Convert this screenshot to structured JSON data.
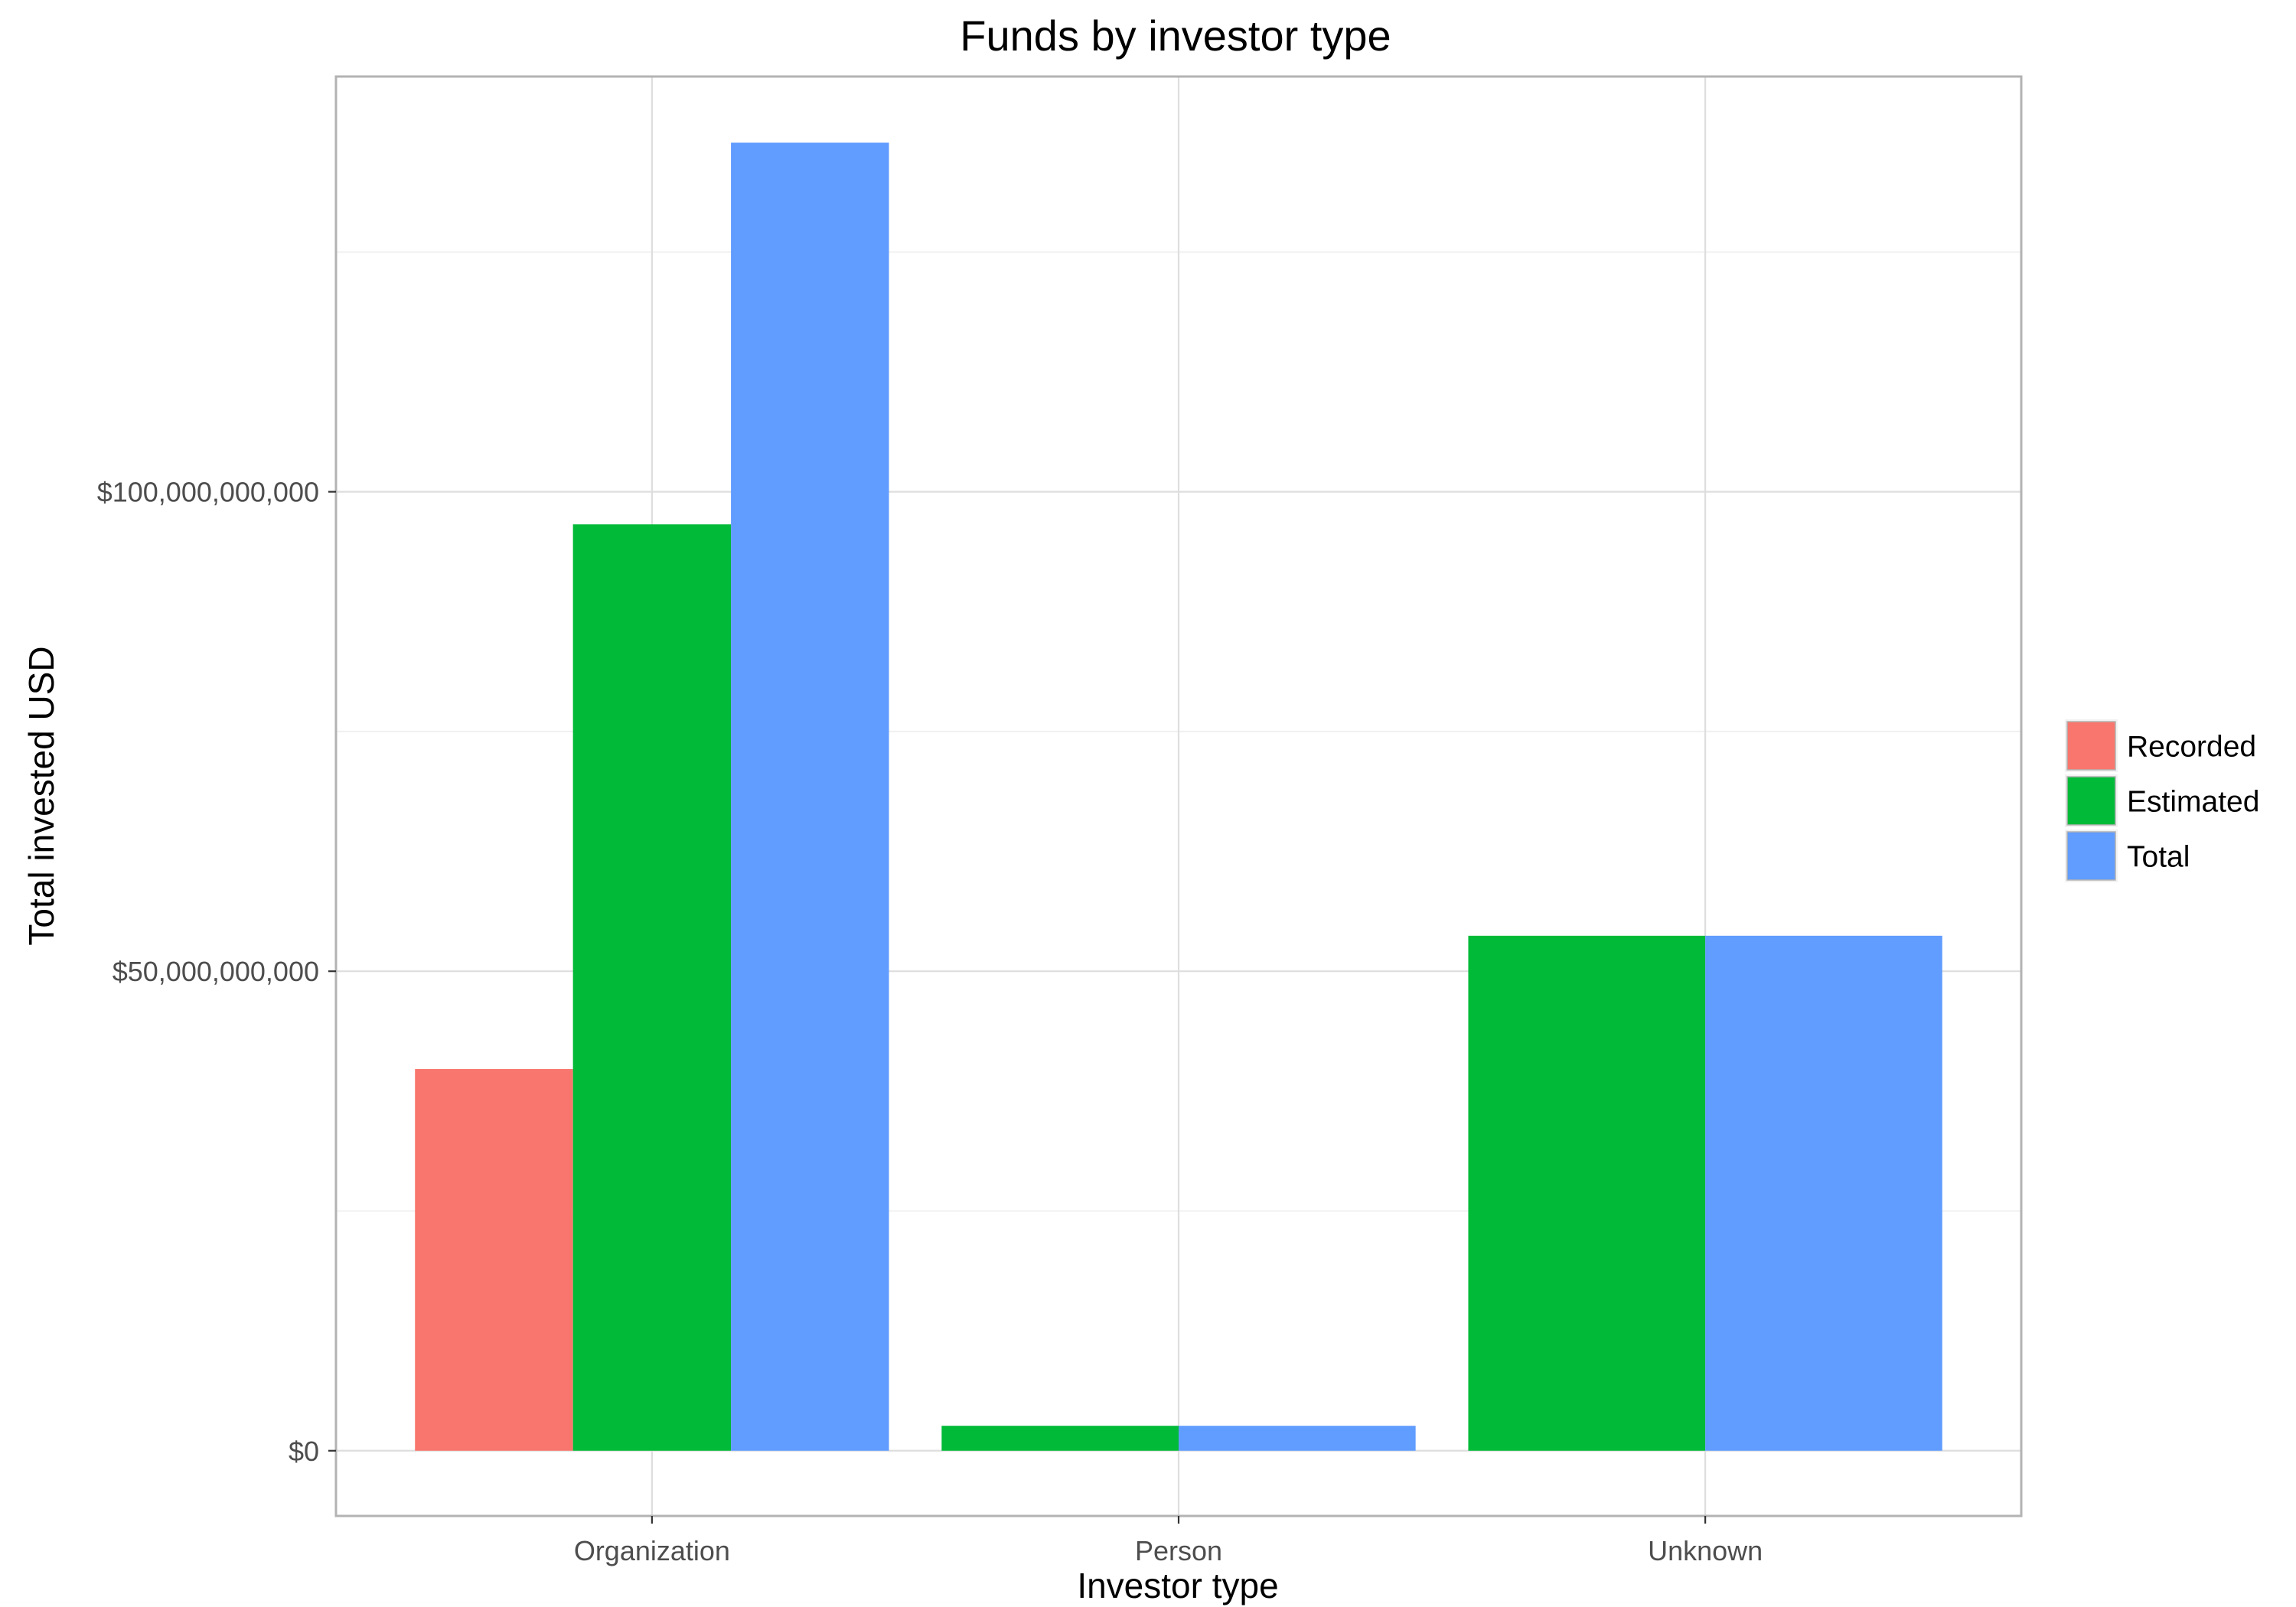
{
  "chart_data": {
    "type": "bar",
    "title": "Funds by investor type",
    "xlabel": "Investor type",
    "ylabel": "Total invested USD",
    "categories": [
      "Organization",
      "Person",
      "Unknown"
    ],
    "series": [
      {
        "name": "Recorded",
        "color": "#F8766D",
        "values": [
          39800000000,
          null,
          null
        ]
      },
      {
        "name": "Estimated",
        "color": "#00BA38",
        "values": [
          96600000000,
          2600000000,
          53700000000
        ]
      },
      {
        "name": "Total",
        "color": "#619CFF",
        "values": [
          136400000000,
          2600000000,
          53700000000
        ]
      }
    ],
    "y_ticks": [
      0,
      50000000000,
      100000000000
    ],
    "y_tick_labels": [
      "$0",
      "$50,000,000,000",
      "$100,000,000,000"
    ],
    "ylim": [
      -6800000000,
      143300000000
    ],
    "grid": true,
    "legend_position": "right"
  }
}
